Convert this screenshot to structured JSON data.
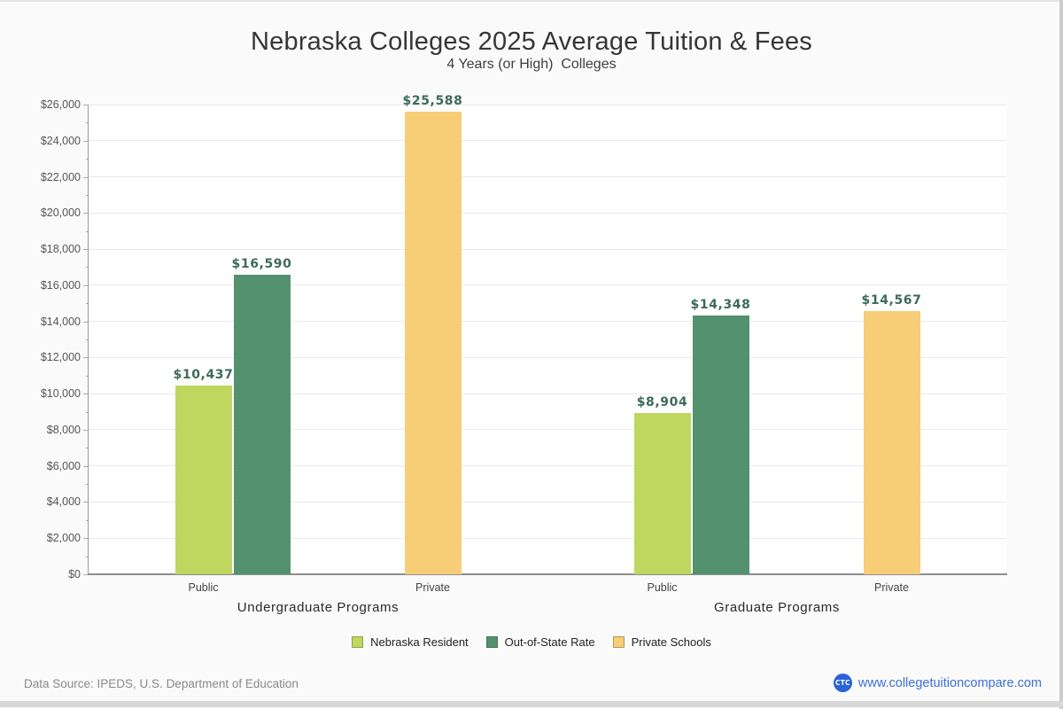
{
  "header": {
    "title": "Nebraska Colleges 2025 Average Tuition & Fees",
    "subtitle": "4 Years (or High)  Colleges"
  },
  "chart_data": {
    "type": "bar",
    "title": "Nebraska Colleges 2025 Average Tuition & Fees",
    "subtitle": "4 Years (or High)  Colleges",
    "categories": [
      "Public",
      "Private",
      "Public",
      "Private"
    ],
    "category_groups": [
      {
        "label": "Undergraduate Programs",
        "span": [
          0,
          1
        ]
      },
      {
        "label": "Graduate Programs",
        "span": [
          2,
          3
        ]
      }
    ],
    "series": [
      {
        "name": "Nebraska Resident",
        "color": "#bfd75f",
        "values": [
          10437,
          null,
          8904,
          null
        ]
      },
      {
        "name": "Out-of-State Rate",
        "color": "#53916f",
        "values": [
          16590,
          null,
          14348,
          null
        ]
      },
      {
        "name": "Private Schools",
        "color": "#f7cd78",
        "values": [
          null,
          25588,
          null,
          14567
        ]
      }
    ],
    "value_labels": [
      "$10,437",
      "$16,590",
      "$25,588",
      "$8,904",
      "$14,348",
      "$14,567"
    ],
    "value_label_color": "#3d6b57",
    "xlabel": "",
    "ylabel": "",
    "ylim": [
      0,
      26000
    ],
    "ytick_major": 2000,
    "ytick_minor": 1000,
    "ytick_prefix": "$",
    "grid": true,
    "legend_position": "bottom"
  },
  "footer": {
    "source": "Data Source: IPEDS, U.S. Department of Education",
    "logo_text": "CTC",
    "website": "www.collegetuitioncompare.com"
  }
}
